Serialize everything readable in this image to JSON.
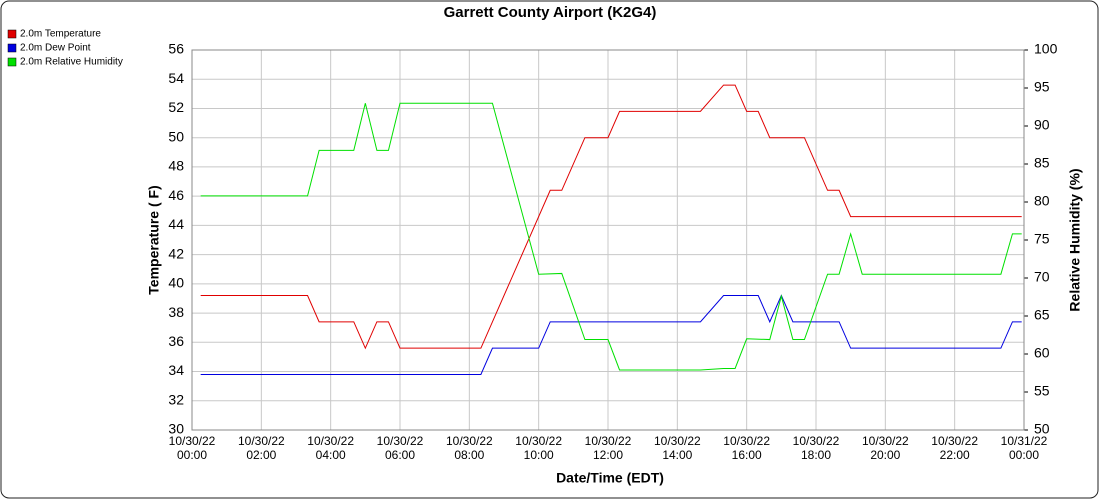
{
  "chart_data": {
    "type": "line",
    "title": "Garrett County Airport (K2G4)",
    "x_label": "Date/Time (EDT)",
    "y_label": "Temperature ( F)",
    "y2_label": "Relative Humidity (%)",
    "xlim": [
      "10/30/22 00:00",
      "10/31/22 00:00"
    ],
    "xticks": [
      {
        "value": "10/30/22 00:00",
        "label": "10/30/22\n00:00"
      },
      {
        "value": "10/30/22 02:00",
        "label": "10/30/22\n02:00"
      },
      {
        "value": "10/30/22 04:00",
        "label": "10/30/22\n04:00"
      },
      {
        "value": "10/30/22 06:00",
        "label": "10/30/22\n06:00"
      },
      {
        "value": "10/30/22 08:00",
        "label": "10/30/22\n08:00"
      },
      {
        "value": "10/30/22 10:00",
        "label": "10/30/22\n10:00"
      },
      {
        "value": "10/30/22 12:00",
        "label": "10/30/22\n12:00"
      },
      {
        "value": "10/30/22 14:00",
        "label": "10/30/22\n14:00"
      },
      {
        "value": "10/30/22 16:00",
        "label": "10/30/22\n16:00"
      },
      {
        "value": "10/30/22 18:00",
        "label": "10/30/22\n18:00"
      },
      {
        "value": "10/30/22 20:00",
        "label": "10/30/22\n20:00"
      },
      {
        "value": "10/30/22 22:00",
        "label": "10/30/22\n22:00"
      },
      {
        "value": "10/31/22 00:00",
        "label": "10/31/22\n00:00"
      }
    ],
    "ylim": [
      30,
      56
    ],
    "yticks": [
      30,
      32,
      34,
      36,
      38,
      40,
      42,
      44,
      46,
      48,
      50,
      52,
      54,
      56
    ],
    "y2lim": [
      50,
      100
    ],
    "y2ticks": [
      50,
      55,
      60,
      65,
      70,
      75,
      80,
      85,
      90,
      95,
      100
    ],
    "grid": true,
    "legend": "top-left",
    "series": [
      {
        "name": "2.0m Temperature",
        "color": "#e00000",
        "x": [
          "10/30/22 00:15",
          "10/30/22 03:20",
          "10/30/22 03:40",
          "10/30/22 04:40",
          "10/30/22 05:00",
          "10/30/22 05:20",
          "10/30/22 05:40",
          "10/30/22 06:00",
          "10/30/22 08:20",
          "10/30/22 10:20",
          "10/30/22 10:40",
          "10/30/22 11:20",
          "10/30/22 12:00",
          "10/30/22 12:20",
          "10/30/22 14:40",
          "10/30/22 15:20",
          "10/30/22 15:40",
          "10/30/22 16:00",
          "10/30/22 16:20",
          "10/30/22 16:40",
          "10/30/22 17:40",
          "10/30/22 18:20",
          "10/30/22 18:40",
          "10/30/22 19:00",
          "10/30/22 23:56"
        ],
        "values": [
          39.2,
          39.2,
          37.4,
          37.4,
          35.6,
          37.4,
          37.4,
          35.6,
          35.6,
          46.4,
          46.4,
          50,
          50,
          51.8,
          51.8,
          53.6,
          53.6,
          51.8,
          51.8,
          50,
          50,
          46.4,
          46.4,
          44.6,
          44.6
        ]
      },
      {
        "name": "2.0m Dew Point",
        "color": "#0000e0",
        "x": [
          "10/30/22 00:15",
          "10/30/22 08:20",
          "10/30/22 08:40",
          "10/30/22 10:00",
          "10/30/22 10:20",
          "10/30/22 14:40",
          "10/30/22 15:20",
          "10/30/22 16:20",
          "10/30/22 16:40",
          "10/30/22 17:00",
          "10/30/22 17:20",
          "10/30/22 18:40",
          "10/30/22 19:00",
          "10/30/22 23:20",
          "10/30/22 23:40",
          "10/30/22 23:56"
        ],
        "values": [
          33.8,
          33.8,
          35.6,
          35.6,
          37.4,
          37.4,
          39.2,
          39.2,
          37.4,
          39.2,
          37.4,
          37.4,
          35.6,
          35.6,
          37.4,
          37.4
        ]
      },
      {
        "name": "2.0m Relative Humidity",
        "color": "#00e000",
        "axis": "y2",
        "x": [
          "10/30/22 00:15",
          "10/30/22 03:20",
          "10/30/22 03:40",
          "10/30/22 04:40",
          "10/30/22 05:00",
          "10/30/22 05:20",
          "10/30/22 05:40",
          "10/30/22 06:00",
          "10/30/22 08:40",
          "10/30/22 10:00",
          "10/30/22 10:40",
          "10/30/22 11:20",
          "10/30/22 12:00",
          "10/30/22 12:20",
          "10/30/22 14:40",
          "10/30/22 15:20",
          "10/30/22 15:40",
          "10/30/22 16:00",
          "10/30/22 16:40",
          "10/30/22 17:00",
          "10/30/22 17:20",
          "10/30/22 17:40",
          "10/30/22 18:20",
          "10/30/22 18:40",
          "10/30/22 19:00",
          "10/30/22 19:20",
          "10/30/22 23:20",
          "10/30/22 23:40",
          "10/30/22 23:56"
        ],
        "values": [
          80.8,
          80.8,
          86.8,
          86.8,
          93,
          86.8,
          86.8,
          93,
          93,
          70.5,
          70.6,
          61.9,
          61.9,
          57.9,
          57.9,
          58.1,
          58.1,
          62,
          61.9,
          67.6,
          61.9,
          61.9,
          70.5,
          70.5,
          75.8,
          70.5,
          70.5,
          75.8,
          75.8
        ]
      }
    ]
  }
}
